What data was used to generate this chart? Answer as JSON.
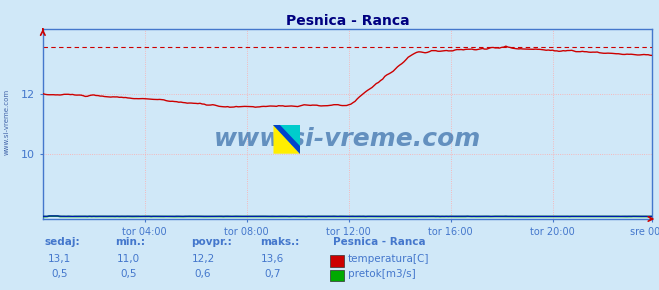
{
  "title": "Pesnica - Ranca",
  "bg_color": "#d0e8f8",
  "plot_bg_color": "#d0e8f8",
  "title_color": "#000080",
  "axis_color": "#4477cc",
  "grid_color": "#ffaaaa",
  "x_tick_labels": [
    "tor 04:00",
    "tor 08:00",
    "tor 12:00",
    "tor 16:00",
    "tor 20:00",
    "sre 00:00"
  ],
  "x_tick_positions": [
    48,
    96,
    144,
    192,
    240,
    287
  ],
  "total_points": 288,
  "y_min": 7.8,
  "y_max": 14.2,
  "y_ticks": [
    10,
    12
  ],
  "temp_color": "#cc0000",
  "flow_color": "#00aa00",
  "flow_blue_color": "#0000cc",
  "watermark_text": "www.si-vreme.com",
  "watermark_color": "#1a5599",
  "sidebar_text": "www.si-vreme.com",
  "sidebar_color": "#4466aa",
  "sedaj_label": "sedaj:",
  "min_label": "min.:",
  "povpr_label": "povpr.:",
  "maks_label": "maks.:",
  "station_label": "Pesnica - Ranca",
  "temp_label": "temperatura[C]",
  "flow_label": "pretok[m3/s]",
  "temp_sedaj": 13.1,
  "temp_min": 11.0,
  "temp_povpr": 12.2,
  "temp_maks": 13.6,
  "flow_sedaj": 0.5,
  "flow_min": 0.5,
  "flow_povpr": 0.6,
  "flow_maks": 0.7,
  "label_color": "#000080",
  "label_color2": "#4477cc"
}
